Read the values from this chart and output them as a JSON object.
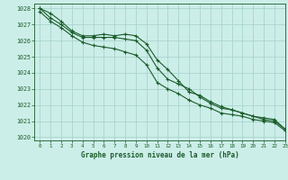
{
  "background_color": "#cceee8",
  "grid_color": "#aad4ce",
  "line_color": "#1a5c2a",
  "title": "Graphe pression niveau de la mer (hPa)",
  "xlim": [
    -0.5,
    23
  ],
  "ylim": [
    1019.8,
    1028.3
  ],
  "yticks": [
    1020,
    1021,
    1022,
    1023,
    1024,
    1025,
    1026,
    1027,
    1028
  ],
  "xticks": [
    0,
    1,
    2,
    3,
    4,
    5,
    6,
    7,
    8,
    9,
    10,
    11,
    12,
    13,
    14,
    15,
    16,
    17,
    18,
    19,
    20,
    21,
    22,
    23
  ],
  "line1_x": [
    0,
    1,
    2,
    3,
    4,
    5,
    6,
    7,
    8,
    9,
    10,
    11,
    12,
    13,
    14,
    15,
    16,
    17,
    18,
    19,
    20,
    21,
    22,
    23
  ],
  "line1_y": [
    1028.0,
    1027.7,
    1027.2,
    1026.6,
    1026.3,
    1026.3,
    1026.4,
    1026.3,
    1026.4,
    1026.3,
    1025.8,
    1024.8,
    1024.2,
    1023.5,
    1022.8,
    1022.6,
    1022.2,
    1021.9,
    1021.7,
    1021.5,
    1021.3,
    1021.2,
    1021.1,
    1020.5
  ],
  "line2_x": [
    0,
    1,
    2,
    3,
    4,
    5,
    6,
    7,
    8,
    9,
    10,
    11,
    12,
    13,
    14,
    15,
    16,
    17,
    18,
    19,
    20,
    21,
    22,
    23
  ],
  "line2_y": [
    1028.0,
    1027.4,
    1027.0,
    1026.5,
    1026.2,
    1026.2,
    1026.2,
    1026.2,
    1026.1,
    1026.0,
    1025.4,
    1024.3,
    1023.6,
    1023.3,
    1023.0,
    1022.5,
    1022.1,
    1021.8,
    1021.7,
    1021.5,
    1021.3,
    1021.1,
    1021.0,
    1020.5
  ],
  "line3_x": [
    0,
    1,
    2,
    3,
    4,
    5,
    6,
    7,
    8,
    9,
    10,
    11,
    12,
    13,
    14,
    15,
    16,
    17,
    18,
    19,
    20,
    21,
    22,
    23
  ],
  "line3_y": [
    1027.8,
    1027.2,
    1026.8,
    1026.3,
    1025.9,
    1025.7,
    1025.6,
    1025.5,
    1025.3,
    1025.1,
    1024.5,
    1023.4,
    1023.0,
    1022.7,
    1022.3,
    1022.0,
    1021.8,
    1021.5,
    1021.4,
    1021.3,
    1021.1,
    1021.0,
    1020.9,
    1020.4
  ]
}
